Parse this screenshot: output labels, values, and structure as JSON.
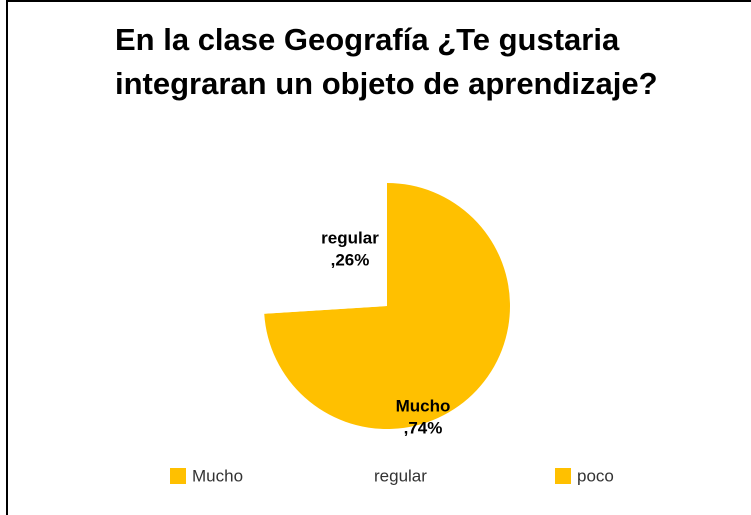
{
  "chart_data": {
    "type": "pie",
    "title": "En la clase Geografía ¿Te gustaria integraran un objeto de aprendizaje?",
    "categories": [
      "Mucho",
      "regular",
      "poco"
    ],
    "values": [
      74,
      26,
      0
    ],
    "value_labels": [
      ",74%",
      ",26%",
      null
    ],
    "colors": [
      "#FFC000",
      "#FFFFFF",
      "#FFC000"
    ],
    "legend": "bottom"
  }
}
